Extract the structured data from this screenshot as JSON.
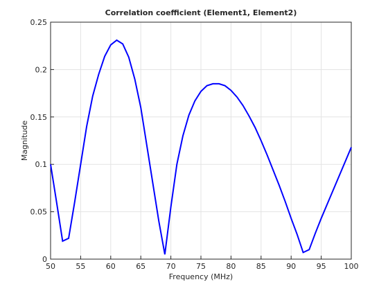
{
  "chart_data": {
    "type": "line",
    "title": "Correlation coefficient (Element1, Element2)",
    "xlabel": "Frequency (MHz)",
    "ylabel": "Magnitude",
    "x": [
      50,
      51,
      52,
      53,
      54,
      55,
      56,
      57,
      58,
      59,
      60,
      61,
      62,
      63,
      64,
      65,
      66,
      67,
      68,
      69,
      70,
      71,
      72,
      73,
      74,
      75,
      76,
      77,
      78,
      79,
      80,
      81,
      82,
      83,
      84,
      85,
      86,
      87,
      88,
      89,
      90,
      91,
      92,
      93,
      94,
      95,
      96,
      97,
      98,
      99,
      100
    ],
    "series": [
      {
        "name": "Element1, Element2",
        "color": "#0000ff",
        "values": [
          0.1,
          0.06,
          0.019,
          0.022,
          0.06,
          0.1,
          0.14,
          0.172,
          0.195,
          0.214,
          0.226,
          0.231,
          0.227,
          0.213,
          0.19,
          0.16,
          0.12,
          0.08,
          0.04,
          0.005,
          0.055,
          0.1,
          0.13,
          0.152,
          0.167,
          0.177,
          0.183,
          0.185,
          0.185,
          0.183,
          0.178,
          0.171,
          0.162,
          0.151,
          0.139,
          0.125,
          0.11,
          0.094,
          0.078,
          0.061,
          0.043,
          0.026,
          0.007,
          0.01,
          0.027,
          0.043,
          0.058,
          0.073,
          0.088,
          0.103,
          0.118
        ]
      }
    ],
    "xlim": [
      50,
      100
    ],
    "xticks": [
      50,
      55,
      60,
      65,
      70,
      75,
      80,
      85,
      90,
      95,
      100
    ],
    "ylim": [
      0,
      0.25
    ],
    "yticks": [
      0,
      0.05,
      0.1,
      0.15,
      0.2,
      0.25
    ],
    "grid": true
  }
}
